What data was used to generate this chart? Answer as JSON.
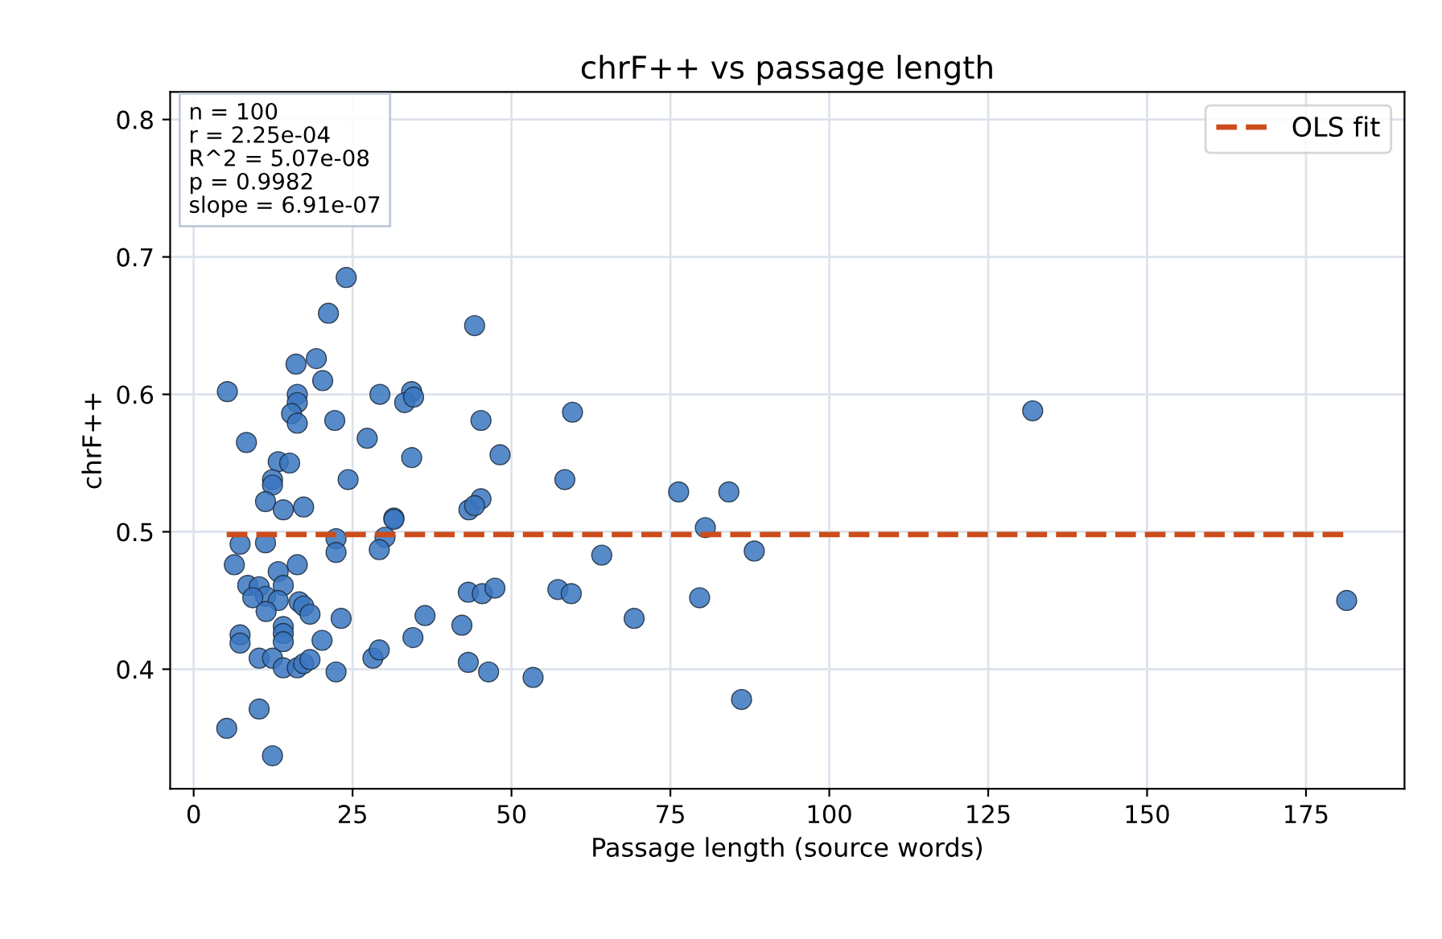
{
  "chart_data": {
    "type": "scatter",
    "title": "chrF++ vs passage length",
    "xlabel": "Passage length (source words)",
    "ylabel": "chrF++",
    "xlim": [
      -3.7,
      190.5
    ],
    "ylim": [
      0.313,
      0.82
    ],
    "xticks": [
      0,
      25,
      50,
      75,
      100,
      125,
      150,
      175
    ],
    "yticks": [
      0.4,
      0.5,
      0.6,
      0.7,
      0.8
    ],
    "grid": true,
    "legend": "top right",
    "annotations": [
      "n = 100\nr = 2.25e-04\nR^2 = 5.07e-08\np = 0.9982\nslope = 6.91e-07"
    ],
    "series": [
      {
        "color": "#3a76bf",
        "marker": "circle",
        "x": [
          24,
          21.2,
          44.2,
          16.1,
          19.3,
          20.3,
          5.3,
          16.3,
          16.3,
          15.4,
          16.3,
          22.2,
          29.3,
          34.3,
          33.2,
          34.6,
          45.2,
          59.6,
          8.3,
          27.3,
          34.3,
          48.2,
          13.3,
          15.1,
          24.3,
          58.4,
          12.4,
          12.4,
          11.3,
          14.1,
          17.3,
          43.3,
          45.2,
          44.2,
          31.5,
          31.5,
          22.4,
          22.4,
          7.3,
          11.3,
          30.1,
          29.2,
          6.4,
          13.3,
          16.3,
          8.5,
          10.3,
          14.1,
          11.3,
          9.3,
          13.3,
          16.6,
          17.3,
          18.3,
          11.4,
          23.2,
          14.1,
          14.1,
          14.1,
          7.3,
          7.3,
          20.2,
          10.3,
          12.4,
          14.1,
          16.3,
          17.3,
          18.3,
          22.4,
          28.2,
          29.2,
          34.5,
          36.4,
          42.2,
          43.2,
          45.4,
          47.4,
          43.2,
          46.4,
          53.4,
          57.3,
          59.4,
          5.2,
          10.3,
          12.4,
          76.3,
          84.2,
          80.5,
          88.2,
          64.2,
          79.6,
          69.3,
          86.2,
          132,
          181.4
        ],
        "values": [
          0.685,
          0.659,
          0.65,
          0.622,
          0.626,
          0.61,
          0.602,
          0.6,
          0.594,
          0.586,
          0.579,
          0.581,
          0.6,
          0.602,
          0.594,
          0.598,
          0.581,
          0.587,
          0.565,
          0.568,
          0.554,
          0.556,
          0.551,
          0.55,
          0.538,
          0.538,
          0.538,
          0.534,
          0.522,
          0.516,
          0.518,
          0.516,
          0.524,
          0.519,
          0.51,
          0.509,
          0.495,
          0.485,
          0.491,
          0.492,
          0.496,
          0.487,
          0.476,
          0.471,
          0.476,
          0.461,
          0.46,
          0.461,
          0.453,
          0.452,
          0.45,
          0.449,
          0.446,
          0.44,
          0.442,
          0.437,
          0.431,
          0.426,
          0.42,
          0.425,
          0.419,
          0.421,
          0.408,
          0.408,
          0.401,
          0.401,
          0.404,
          0.407,
          0.398,
          0.408,
          0.414,
          0.423,
          0.439,
          0.432,
          0.456,
          0.455,
          0.459,
          0.405,
          0.398,
          0.394,
          0.458,
          0.455,
          0.357,
          0.371,
          0.337,
          0.529,
          0.529,
          0.503,
          0.486,
          0.483,
          0.452,
          0.437,
          0.378,
          0.588,
          0.45
        ]
      },
      {
        "type": "line",
        "name": "OLS fit",
        "color": "#cc4c1a",
        "line_style": "dashed",
        "x": [
          5.2,
          181.4
        ],
        "values": [
          0.498,
          0.498
        ]
      }
    ]
  }
}
